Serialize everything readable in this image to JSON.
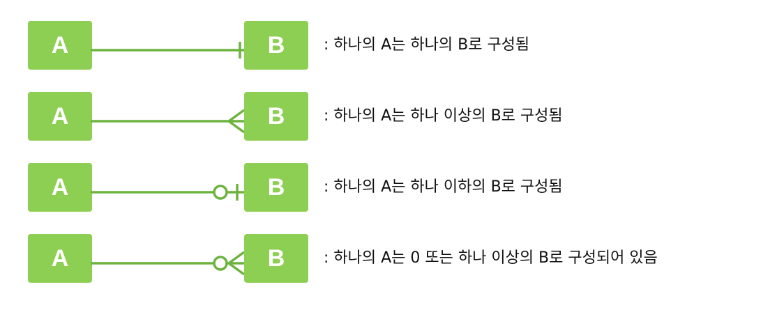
{
  "colors": {
    "entity_fill": "#8dcf52",
    "line": "#6db33f",
    "text_on_entity": "#ffffff"
  },
  "rows": [
    {
      "left": "A",
      "right": "B",
      "notation": "exactly-one",
      "description": ": 하나의 A는 하나의 B로 구성됨"
    },
    {
      "left": "A",
      "right": "B",
      "notation": "one-or-many",
      "description": ": 하나의 A는 하나 이상의 B로 구성됨"
    },
    {
      "left": "A",
      "right": "B",
      "notation": "zero-or-one",
      "description": ": 하나의 A는 하나 이하의 B로 구성됨"
    },
    {
      "left": "A",
      "right": "B",
      "notation": "zero-or-many",
      "description": ": 하나의 A는 0 또는 하나 이상의 B로 구성되어 있음"
    }
  ]
}
